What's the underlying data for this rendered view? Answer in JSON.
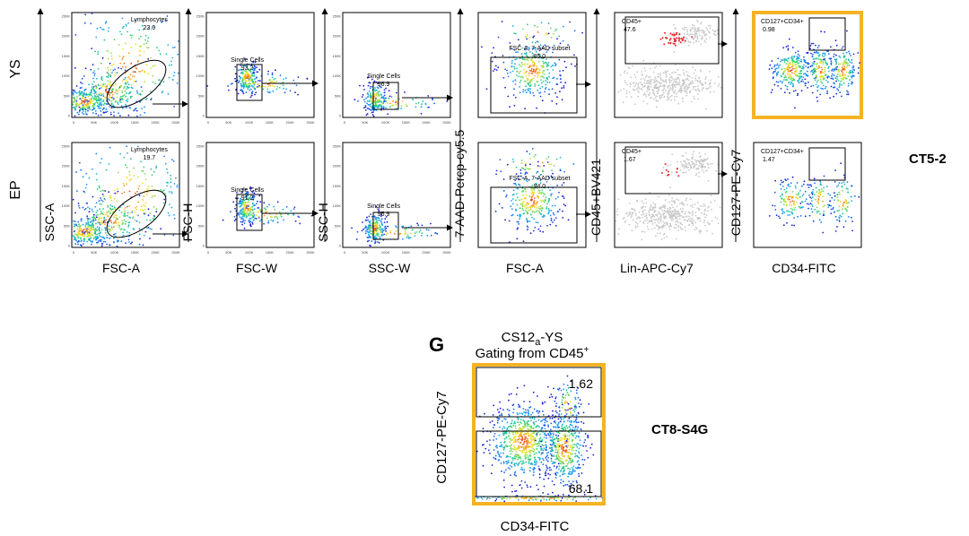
{
  "figure": {
    "row_labels": [
      "YS",
      "EP"
    ],
    "right_labels": [
      "CT5-2",
      "CT8-S4G"
    ],
    "panel_letter": "G"
  },
  "axis_labels": {
    "x": [
      "FSC-A",
      "FSC-W",
      "SSC-W",
      "FSC-A",
      "Lin-APC-Cy7",
      "CD34-FITC"
    ],
    "y": [
      "SSC-A",
      "FSC-H",
      "SSC-H",
      "7-AAD-Percp-cy5.5",
      "CD45+BV421",
      "CD127-PE-Cy7"
    ]
  },
  "linear_ticks": [
    "0",
    "50K",
    "100K",
    "150K",
    "200K",
    "250K"
  ],
  "gates": {
    "YS": [
      {
        "name": "Lymphocytes",
        "value": "23.0"
      },
      {
        "name": "Single Cells",
        "value": "93.2"
      },
      {
        "name": "Single Cells",
        "value": "96.9"
      },
      {
        "name": "FSC-A, 7-AAD subset",
        "value": "85.0"
      },
      {
        "name": "CD45+",
        "value": "47.6"
      },
      {
        "name": "CD127+CD34+",
        "value": "0.98"
      }
    ],
    "EP": [
      {
        "name": "Lymphocytes",
        "value": "19.7"
      },
      {
        "name": "Single Cells",
        "value": "91.2"
      },
      {
        "name": "Single Cells",
        "value": "95.9"
      },
      {
        "name": "FSC-A, 7-AAD subset",
        "value": "94.0"
      },
      {
        "name": "CD45+",
        "value": "1.67"
      },
      {
        "name": "CD127+CD34+",
        "value": "1.47"
      }
    ]
  },
  "panel_g": {
    "title_line1_main": "CS12",
    "title_line1_sub": "a",
    "title_line1_rest": "-YS",
    "title_line2_main": "Gating from CD45",
    "title_line2_sup": "+",
    "xlabel": "CD34-FITC",
    "ylabel": "CD127-PE-Cy7",
    "gate_upper_value": "1.62",
    "gate_lower_value": "68.1"
  },
  "colors": {
    "highlight_border": "#f5b324",
    "gate_line": "#000000",
    "gray_events": "#c8c8c8",
    "red_events": "#e8282a"
  },
  "chart_data": {
    "type": "scatter",
    "description_rows": [
      "YS",
      "EP"
    ],
    "gate_percentages": {
      "YS": {
        "Lymphocytes": 23.0,
        "Single Cells (FSC)": 93.2,
        "Single Cells (SSC)": 96.9,
        "FSC-A, 7-AAD subset": 85.0,
        "CD45+": 47.6,
        "CD127+CD34+": 0.98
      },
      "EP": {
        "Lymphocytes": 19.7,
        "Single Cells (FSC)": 91.2,
        "Single Cells (SSC)": 95.9,
        "FSC-A, 7-AAD subset": 94.0,
        "CD45+": 1.67,
        "CD127+CD34+": 1.47
      },
      "CS12a-YS": {
        "upper_gate": 1.62,
        "lower_gate": 68.1
      }
    },
    "linear_axis_range": [
      0,
      250000
    ]
  }
}
